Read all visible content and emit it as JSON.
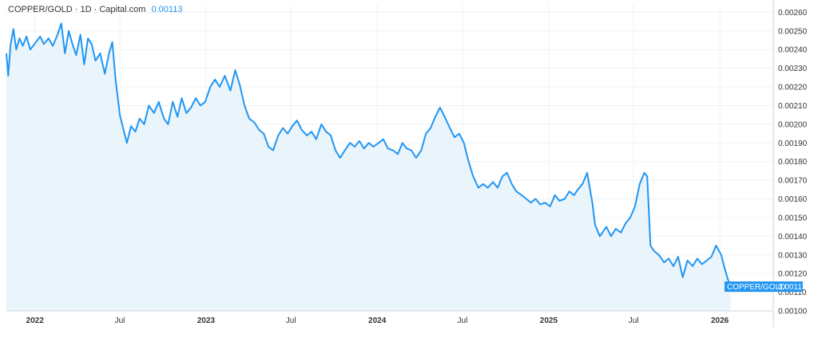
{
  "legend": {
    "symbol": "COPPER/GOLD",
    "separator": "·",
    "interval": "1D",
    "source": "Capital.com",
    "value": "0.00113"
  },
  "price_tag": {
    "label": "COPPER/GOLD",
    "value": "0.00113"
  },
  "colors": {
    "line": "#2196f3",
    "area_fill": "#eaf4fb",
    "grid": "#eef1f4",
    "axis": "#cfd4da",
    "tag_bg": "#2196f3"
  },
  "chart_data": {
    "type": "area",
    "title": "",
    "xlabel": "",
    "ylabel": "",
    "ylim": [
      0.001,
      0.00264
    ],
    "xlim": [
      "2021-11-01",
      "2026-04-25"
    ],
    "y_ticks": [
      "0.00100",
      "0.00110",
      "0.00120",
      "0.00130",
      "0.00140",
      "0.00150",
      "0.00160",
      "0.00170",
      "0.00180",
      "0.00190",
      "0.00200",
      "0.00210",
      "0.00220",
      "0.00230",
      "0.00240",
      "0.00250",
      "0.00260"
    ],
    "x_ticks": [
      {
        "label": "2022",
        "date": "2022-01-01",
        "major": true
      },
      {
        "label": "Jul",
        "date": "2022-07-01",
        "major": false
      },
      {
        "label": "2023",
        "date": "2023-01-01",
        "major": true
      },
      {
        "label": "Jul",
        "date": "2023-07-01",
        "major": false
      },
      {
        "label": "2024",
        "date": "2024-01-01",
        "major": true
      },
      {
        "label": "Jul",
        "date": "2024-07-01",
        "major": false
      },
      {
        "label": "2025",
        "date": "2025-01-01",
        "major": true
      },
      {
        "label": "Jul",
        "date": "2025-07-01",
        "major": false
      },
      {
        "label": "2026",
        "date": "2026-01-01",
        "major": true
      }
    ],
    "grid": true,
    "series": [
      {
        "name": "COPPER/GOLD",
        "points": [
          [
            "2021-11-01",
            0.00238
          ],
          [
            "2021-11-05",
            0.00226
          ],
          [
            "2021-11-10",
            0.00243
          ],
          [
            "2021-11-16",
            0.00251
          ],
          [
            "2021-11-22",
            0.0024
          ],
          [
            "2021-11-29",
            0.00246
          ],
          [
            "2021-12-06",
            0.00242
          ],
          [
            "2021-12-14",
            0.00247
          ],
          [
            "2021-12-22",
            0.0024
          ],
          [
            "2022-01-03",
            0.00244
          ],
          [
            "2022-01-12",
            0.00247
          ],
          [
            "2022-01-20",
            0.00243
          ],
          [
            "2022-01-30",
            0.00246
          ],
          [
            "2022-02-08",
            0.00242
          ],
          [
            "2022-02-18",
            0.00248
          ],
          [
            "2022-02-26",
            0.00254
          ],
          [
            "2022-03-06",
            0.00238
          ],
          [
            "2022-03-14",
            0.0025
          ],
          [
            "2022-03-22",
            0.00243
          ],
          [
            "2022-03-30",
            0.00237
          ],
          [
            "2022-04-08",
            0.00248
          ],
          [
            "2022-04-16",
            0.00232
          ],
          [
            "2022-04-24",
            0.00246
          ],
          [
            "2022-05-02",
            0.00243
          ],
          [
            "2022-05-10",
            0.00234
          ],
          [
            "2022-05-20",
            0.00238
          ],
          [
            "2022-05-30",
            0.00227
          ],
          [
            "2022-06-08",
            0.00238
          ],
          [
            "2022-06-15",
            0.00244
          ],
          [
            "2022-06-22",
            0.00224
          ],
          [
            "2022-07-01",
            0.00205
          ],
          [
            "2022-07-08",
            0.00198
          ],
          [
            "2022-07-16",
            0.0019
          ],
          [
            "2022-07-25",
            0.00199
          ],
          [
            "2022-08-03",
            0.00196
          ],
          [
            "2022-08-12",
            0.00203
          ],
          [
            "2022-08-22",
            0.002
          ],
          [
            "2022-09-01",
            0.0021
          ],
          [
            "2022-09-12",
            0.00206
          ],
          [
            "2022-09-22",
            0.00212
          ],
          [
            "2022-10-03",
            0.00203
          ],
          [
            "2022-10-12",
            0.002
          ],
          [
            "2022-10-22",
            0.00212
          ],
          [
            "2022-11-01",
            0.00204
          ],
          [
            "2022-11-10",
            0.00214
          ],
          [
            "2022-11-20",
            0.00206
          ],
          [
            "2022-11-30",
            0.00209
          ],
          [
            "2022-12-10",
            0.00214
          ],
          [
            "2022-12-20",
            0.0021
          ],
          [
            "2022-12-30",
            0.00212
          ],
          [
            "2023-01-10",
            0.0022
          ],
          [
            "2023-01-20",
            0.00224
          ],
          [
            "2023-01-30",
            0.0022
          ],
          [
            "2023-02-10",
            0.00226
          ],
          [
            "2023-02-22",
            0.00218
          ],
          [
            "2023-03-04",
            0.00229
          ],
          [
            "2023-03-14",
            0.00221
          ],
          [
            "2023-03-24",
            0.0021
          ],
          [
            "2023-04-03",
            0.00203
          ],
          [
            "2023-04-14",
            0.00201
          ],
          [
            "2023-04-24",
            0.00197
          ],
          [
            "2023-05-04",
            0.00195
          ],
          [
            "2023-05-14",
            0.00188
          ],
          [
            "2023-05-24",
            0.00186
          ],
          [
            "2023-06-04",
            0.00194
          ],
          [
            "2023-06-14",
            0.00198
          ],
          [
            "2023-06-24",
            0.00195
          ],
          [
            "2023-07-04",
            0.00199
          ],
          [
            "2023-07-14",
            0.00202
          ],
          [
            "2023-07-24",
            0.00197
          ],
          [
            "2023-08-04",
            0.00194
          ],
          [
            "2023-08-14",
            0.00196
          ],
          [
            "2023-08-24",
            0.00192
          ],
          [
            "2023-09-04",
            0.002
          ],
          [
            "2023-09-14",
            0.00196
          ],
          [
            "2023-09-24",
            0.00194
          ],
          [
            "2023-10-04",
            0.00186
          ],
          [
            "2023-10-14",
            0.00182
          ],
          [
            "2023-10-24",
            0.00186
          ],
          [
            "2023-11-04",
            0.0019
          ],
          [
            "2023-11-14",
            0.00188
          ],
          [
            "2023-11-24",
            0.00191
          ],
          [
            "2023-12-04",
            0.00187
          ],
          [
            "2023-12-14",
            0.0019
          ],
          [
            "2023-12-24",
            0.00188
          ],
          [
            "2024-01-04",
            0.0019
          ],
          [
            "2024-01-14",
            0.00192
          ],
          [
            "2024-01-24",
            0.00187
          ],
          [
            "2024-02-04",
            0.00186
          ],
          [
            "2024-02-14",
            0.00184
          ],
          [
            "2024-02-24",
            0.0019
          ],
          [
            "2024-03-04",
            0.00187
          ],
          [
            "2024-03-14",
            0.00186
          ],
          [
            "2024-03-24",
            0.00182
          ],
          [
            "2024-04-04",
            0.00186
          ],
          [
            "2024-04-14",
            0.00195
          ],
          [
            "2024-04-24",
            0.00198
          ],
          [
            "2024-05-04",
            0.00204
          ],
          [
            "2024-05-14",
            0.00209
          ],
          [
            "2024-05-24",
            0.00204
          ],
          [
            "2024-06-04",
            0.00198
          ],
          [
            "2024-06-14",
            0.00193
          ],
          [
            "2024-06-24",
            0.00195
          ],
          [
            "2024-07-04",
            0.0019
          ],
          [
            "2024-07-14",
            0.0018
          ],
          [
            "2024-07-24",
            0.00172
          ],
          [
            "2024-08-04",
            0.00166
          ],
          [
            "2024-08-14",
            0.00168
          ],
          [
            "2024-08-24",
            0.00166
          ],
          [
            "2024-09-04",
            0.00169
          ],
          [
            "2024-09-14",
            0.00166
          ],
          [
            "2024-09-24",
            0.00172
          ],
          [
            "2024-10-04",
            0.00174
          ],
          [
            "2024-10-14",
            0.00168
          ],
          [
            "2024-10-24",
            0.00164
          ],
          [
            "2024-11-04",
            0.00162
          ],
          [
            "2024-11-14",
            0.0016
          ],
          [
            "2024-11-24",
            0.00158
          ],
          [
            "2024-12-04",
            0.0016
          ],
          [
            "2024-12-14",
            0.00157
          ],
          [
            "2024-12-24",
            0.00158
          ],
          [
            "2025-01-04",
            0.00156
          ],
          [
            "2025-01-14",
            0.00162
          ],
          [
            "2025-01-24",
            0.00159
          ],
          [
            "2025-02-04",
            0.0016
          ],
          [
            "2025-02-14",
            0.00164
          ],
          [
            "2025-02-24",
            0.00162
          ],
          [
            "2025-03-04",
            0.00165
          ],
          [
            "2025-03-14",
            0.00168
          ],
          [
            "2025-03-24",
            0.00174
          ],
          [
            "2025-04-04",
            0.00158
          ],
          [
            "2025-04-10",
            0.00146
          ],
          [
            "2025-04-20",
            0.0014
          ],
          [
            "2025-05-04",
            0.00145
          ],
          [
            "2025-05-14",
            0.0014
          ],
          [
            "2025-05-24",
            0.00144
          ],
          [
            "2025-06-04",
            0.00142
          ],
          [
            "2025-06-14",
            0.00147
          ],
          [
            "2025-06-24",
            0.0015
          ],
          [
            "2025-07-04",
            0.00156
          ],
          [
            "2025-07-14",
            0.00168
          ],
          [
            "2025-07-24",
            0.00174
          ],
          [
            "2025-07-30",
            0.00172
          ],
          [
            "2025-08-06",
            0.00135
          ],
          [
            "2025-08-14",
            0.00132
          ],
          [
            "2025-08-24",
            0.0013
          ],
          [
            "2025-09-04",
            0.00126
          ],
          [
            "2025-09-14",
            0.00128
          ],
          [
            "2025-09-24",
            0.00124
          ],
          [
            "2025-10-04",
            0.00129
          ],
          [
            "2025-10-14",
            0.00118
          ],
          [
            "2025-10-24",
            0.00127
          ],
          [
            "2025-11-04",
            0.00124
          ],
          [
            "2025-11-14",
            0.00128
          ],
          [
            "2025-11-24",
            0.00125
          ],
          [
            "2025-12-04",
            0.00127
          ],
          [
            "2025-12-14",
            0.00129
          ],
          [
            "2025-12-24",
            0.00135
          ],
          [
            "2026-01-04",
            0.0013
          ],
          [
            "2026-01-10",
            0.00124
          ],
          [
            "2026-01-18",
            0.00117
          ],
          [
            "2026-01-24",
            0.00113
          ]
        ]
      }
    ]
  }
}
